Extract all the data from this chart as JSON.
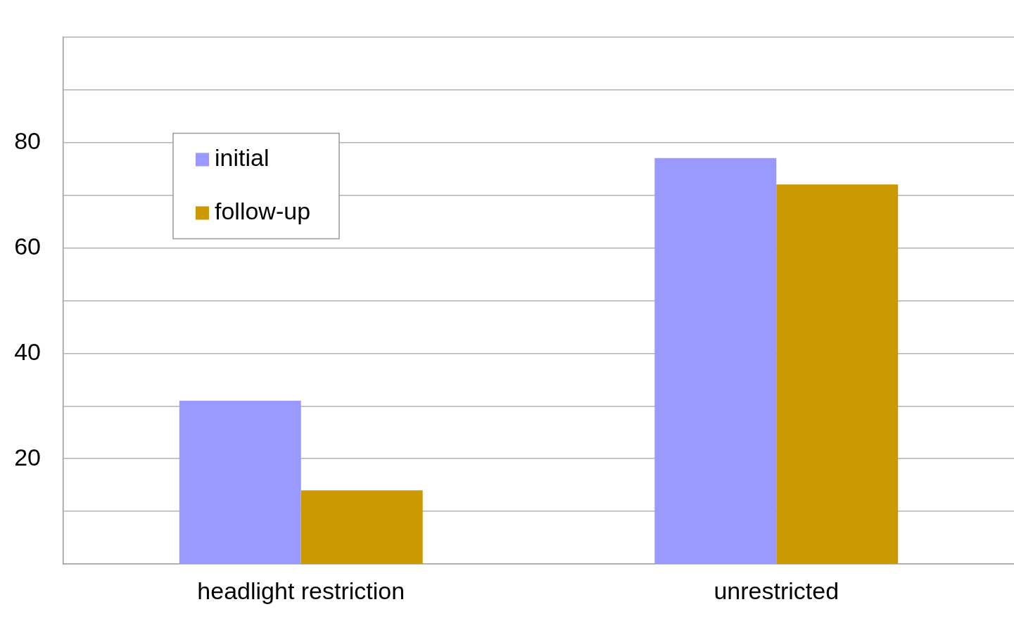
{
  "chart_data": {
    "type": "bar",
    "categories": [
      "headlight restriction",
      "unrestricted"
    ],
    "series": [
      {
        "name": "initial",
        "color": "#9999ff",
        "values": [
          31,
          77
        ]
      },
      {
        "name": "follow-up",
        "color": "#cc9900",
        "values": [
          14,
          72
        ]
      }
    ],
    "ylim": [
      0,
      100
    ],
    "yticks": [
      {
        "value": 10,
        "label": null
      },
      20,
      {
        "value": 30,
        "label": null
      },
      40,
      {
        "value": 50,
        "label": null
      },
      60,
      {
        "value": 70,
        "label": null
      },
      80,
      {
        "value": 90,
        "label": null
      },
      {
        "value": 100,
        "label": null
      }
    ],
    "grid": "y",
    "legend": "top left"
  }
}
